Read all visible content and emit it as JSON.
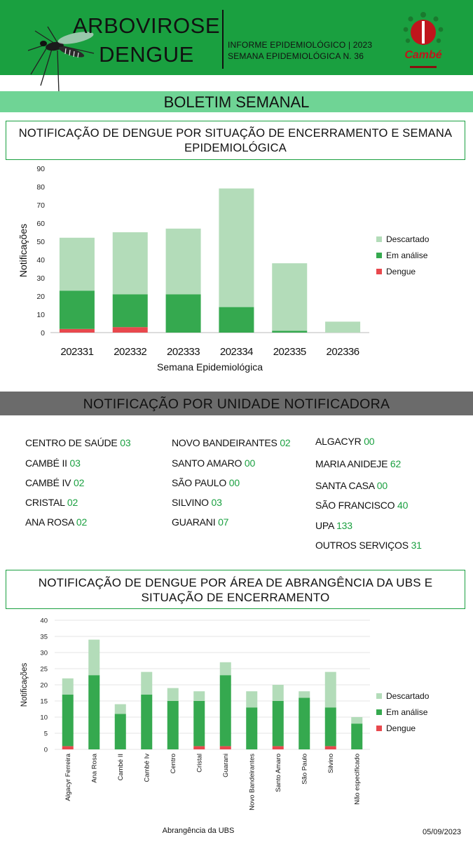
{
  "header": {
    "title_line1": "ARBOVIROSE",
    "title_line2": "DENGUE",
    "info_line1": "INFORME EPIDEMIOLÓGICO | 2023",
    "info_line2": "SEMANA EPIDEMIOLÓGICA  N. 36",
    "logo_text": "Cambé"
  },
  "banner": "BOLETIM SEMANAL",
  "section1_title": "NOTIFICAÇÃO DE DENGUE POR SITUAÇÃO DE ENCERRAMENTO E SEMANA EPIDEMIOLÓGICA",
  "section2_title": "NOTIFICAÇÃO POR UNIDADE NOTIFICADORA",
  "section3_title_line1": "NOTIFICAÇÃO DE DENGUE POR ÁREA DE ABRANGÊNCIA DA UBS E",
  "section3_title_line2": "SITUAÇÃO DE ENCERRAMENTO",
  "units": {
    "col1": [
      {
        "name": "CENTRO  DE SAÚDE ",
        "value": "03"
      },
      {
        "name": "CAMBÉ II ",
        "value": "03"
      },
      {
        "name": "CAMBÉ IV ",
        "value": "02"
      },
      {
        "name": "CRISTAL ",
        "value": "02"
      },
      {
        "name": "ANA ROSA ",
        "value": "02"
      }
    ],
    "col2": [
      {
        "name": "NOVO BANDEIRANTES ",
        "value": "02"
      },
      {
        "name": "SANTO AMARO ",
        "value": "00"
      },
      {
        "name": "SÃO PAULO ",
        "value": "00"
      },
      {
        "name": "SILVINO ",
        "value": "03"
      },
      {
        "name": "GUARANI ",
        "value": "07"
      }
    ],
    "col3": [
      {
        "name": "ALGACYR ",
        "value": "00"
      },
      {
        "name": "MARIA ANIDEJE ",
        "value": "62"
      },
      {
        "name": "SANTA CASA ",
        "value": "00"
      },
      {
        "name": "SÃO FRANCISCO ",
        "value": "40"
      },
      {
        "name": "UPA ",
        "value": "133"
      },
      {
        "name": "OUTROS SERVIÇOS ",
        "value": "31"
      }
    ]
  },
  "footer_date": "05/09/2023",
  "colors": {
    "descartado": "#b3dcb9",
    "em_analise": "#35a94f",
    "dengue": "#e8484d",
    "brand_green": "#1aa040"
  },
  "chart_data": [
    {
      "type": "bar",
      "stacked": true,
      "xlabel": "Semana Epidemiológica",
      "ylabel": "Notificações",
      "ylim": [
        0,
        90
      ],
      "yticks": [
        0,
        10,
        20,
        30,
        40,
        50,
        60,
        70,
        80,
        90
      ],
      "legend_position": "right",
      "categories": [
        "202331",
        "202332",
        "202333",
        "202334",
        "202335",
        "202336"
      ],
      "series": [
        {
          "name": "Dengue",
          "values": [
            2,
            3,
            0,
            0,
            0,
            0
          ]
        },
        {
          "name": "Em análise",
          "values": [
            21,
            18,
            21,
            14,
            1,
            0
          ]
        },
        {
          "name": "Descartado",
          "values": [
            29,
            34,
            36,
            65,
            37,
            6
          ]
        }
      ]
    },
    {
      "type": "bar",
      "stacked": true,
      "xlabel": "Abrangência da UBS",
      "ylabel": "Notificações",
      "ylim": [
        0,
        40
      ],
      "yticks": [
        0,
        5,
        10,
        15,
        20,
        25,
        30,
        35,
        40
      ],
      "legend_position": "right",
      "categories": [
        "Algacyr Ferreira",
        "Ana Rosa",
        "Cambé II",
        "Cambé Iv",
        "Centro",
        "Cristal",
        "Guarani",
        "Novo Bandeirantes",
        "Santo Amaro",
        "São Paulo",
        "Silvino",
        "Não especificado"
      ],
      "series": [
        {
          "name": "Dengue",
          "values": [
            1,
            0,
            0,
            0,
            0,
            1,
            1,
            0,
            1,
            0,
            1,
            0
          ]
        },
        {
          "name": "Em análise",
          "values": [
            16,
            23,
            11,
            17,
            15,
            14,
            22,
            13,
            14,
            16,
            12,
            8
          ]
        },
        {
          "name": "Descartado",
          "values": [
            5,
            11,
            3,
            7,
            4,
            3,
            4,
            5,
            5,
            2,
            11,
            2
          ]
        }
      ]
    }
  ]
}
